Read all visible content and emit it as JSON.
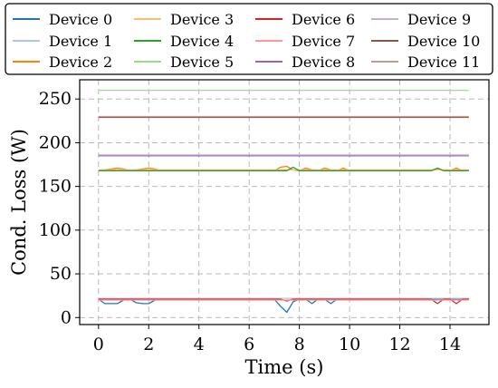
{
  "chart_data": {
    "type": "line",
    "title": "",
    "xlabel": "Time (s)",
    "ylabel": "Cond. Loss (W)",
    "xlim": [
      -0.75,
      15.55
    ],
    "ylim": [
      -8,
      272
    ],
    "xticks": [
      0,
      2,
      4,
      6,
      8,
      10,
      12,
      14
    ],
    "yticks": [
      0,
      50,
      100,
      150,
      200,
      250
    ],
    "grid": true,
    "grid_style": "dashed",
    "legend_position": "top (above plot, 4 columns)",
    "x": [
      0,
      0.25,
      0.5,
      0.75,
      1,
      1.25,
      1.5,
      1.75,
      2,
      2.25,
      2.5,
      2.75,
      3,
      3.25,
      3.5,
      3.75,
      4,
      4.25,
      4.5,
      4.75,
      5,
      5.25,
      5.5,
      5.75,
      6,
      6.25,
      6.5,
      6.75,
      7,
      7.25,
      7.5,
      7.75,
      8,
      8.25,
      8.5,
      8.75,
      9,
      9.25,
      9.5,
      9.75,
      10,
      10.25,
      10.5,
      10.75,
      11,
      11.25,
      11.5,
      11.75,
      12,
      12.25,
      12.5,
      12.75,
      13,
      13.25,
      13.5,
      13.75,
      14,
      14.25,
      14.5,
      14.75
    ],
    "series": [
      {
        "name": "Device 0",
        "color": "#1f77b4",
        "values": [
          21,
          16,
          16,
          16,
          20,
          21,
          17,
          16,
          16,
          20,
          21,
          21,
          21,
          21,
          21,
          21,
          21,
          21,
          21,
          21,
          21,
          21,
          21,
          21,
          21,
          21,
          21,
          21,
          21,
          13,
          6,
          18,
          21,
          21,
          16,
          21,
          21,
          16,
          21,
          21,
          21,
          21,
          21,
          21,
          21,
          21,
          21,
          21,
          21,
          21,
          21,
          21,
          21,
          21,
          21,
          21,
          21,
          21,
          21,
          21
        ]
      },
      {
        "name": "Device 1",
        "color": "#aec7e8",
        "values": [
          22,
          22,
          22,
          22,
          22,
          22,
          22,
          22,
          22,
          22,
          22,
          22,
          22,
          22,
          22,
          22,
          22,
          22,
          22,
          22,
          22,
          22,
          22,
          22,
          22,
          22,
          22,
          22,
          22,
          22,
          22,
          22,
          22,
          22,
          22,
          22,
          22,
          22,
          22,
          22,
          22,
          22,
          22,
          22,
          22,
          22,
          22,
          22,
          22,
          22,
          22,
          22,
          22,
          22,
          22,
          22,
          22,
          22,
          22,
          22
        ]
      },
      {
        "name": "Device 2",
        "color": "#ff7f0e",
        "values": [
          168,
          169,
          170,
          171,
          170,
          168,
          169,
          170,
          171,
          170,
          168,
          168,
          168,
          168,
          168,
          168,
          168,
          168,
          168,
          168,
          168,
          168,
          168,
          168,
          168,
          168,
          168,
          168,
          168,
          172,
          173,
          169,
          168,
          171,
          169,
          168,
          171,
          169,
          168,
          171,
          168,
          168,
          168,
          168,
          168,
          168,
          168,
          168,
          168,
          168,
          168,
          168,
          168,
          168,
          170,
          168,
          168,
          171,
          168,
          168
        ]
      },
      {
        "name": "Device 3",
        "color": "#ffbb78",
        "values": [
          169,
          169,
          169,
          169,
          169,
          169,
          169,
          169,
          169,
          169,
          169,
          169,
          169,
          169,
          169,
          169,
          169,
          169,
          169,
          169,
          169,
          169,
          169,
          169,
          169,
          169,
          169,
          169,
          169,
          169,
          169,
          169,
          169,
          169,
          169,
          169,
          169,
          169,
          169,
          169,
          169,
          169,
          169,
          169,
          169,
          169,
          169,
          169,
          169,
          169,
          169,
          169,
          169,
          169,
          169,
          169,
          169,
          169,
          169,
          169
        ]
      },
      {
        "name": "Device 4",
        "color": "#2ca02c",
        "values": [
          168,
          168,
          168,
          168,
          168,
          168,
          168,
          168,
          168,
          168,
          168,
          168,
          168,
          168,
          168,
          168,
          168,
          168,
          168,
          168,
          168,
          168,
          168,
          168,
          168,
          168,
          168,
          168,
          168,
          168,
          168,
          172,
          168,
          168,
          168,
          168,
          168,
          168,
          168,
          168,
          168,
          168,
          168,
          168,
          168,
          168,
          168,
          168,
          168,
          168,
          168,
          168,
          168,
          168,
          171,
          168,
          168,
          168,
          168,
          168
        ]
      },
      {
        "name": "Device 5",
        "color": "#98df8a",
        "values": [
          260,
          260,
          260,
          260,
          260,
          260,
          260,
          260,
          260,
          260,
          260,
          260,
          260,
          260,
          260,
          260,
          260,
          260,
          260,
          260,
          260,
          260,
          260,
          260,
          260,
          260,
          260,
          260,
          260,
          260,
          260,
          260,
          260,
          260,
          260,
          260,
          260,
          260,
          260,
          260,
          260,
          260,
          260,
          260,
          260,
          260,
          260,
          260,
          260,
          260,
          260,
          260,
          260,
          260,
          260,
          260,
          260,
          260,
          260,
          260
        ]
      },
      {
        "name": "Device 6",
        "color": "#d62728",
        "values": [
          21,
          21,
          21,
          21,
          21,
          21,
          21,
          21,
          21,
          21,
          21,
          21,
          21,
          21,
          21,
          21,
          21,
          21,
          21,
          21,
          21,
          21,
          21,
          21,
          21,
          21,
          21,
          21,
          21,
          21,
          19,
          21,
          21,
          21,
          21,
          21,
          21,
          21,
          21,
          21,
          21,
          21,
          21,
          21,
          21,
          21,
          21,
          21,
          21,
          21,
          21,
          21,
          21,
          21,
          16,
          21,
          21,
          16,
          21,
          21
        ]
      },
      {
        "name": "Device 7",
        "color": "#ff9896",
        "values": [
          20,
          20,
          20,
          20,
          20,
          20,
          20,
          20,
          20,
          20,
          20,
          20,
          20,
          20,
          20,
          20,
          20,
          20,
          20,
          20,
          20,
          20,
          20,
          20,
          20,
          20,
          20,
          20,
          20,
          20,
          20,
          20,
          20,
          20,
          20,
          20,
          20,
          20,
          20,
          20,
          20,
          20,
          20,
          20,
          20,
          20,
          20,
          20,
          20,
          20,
          20,
          20,
          20,
          20,
          20,
          20,
          20,
          20,
          20,
          20
        ]
      },
      {
        "name": "Device 8",
        "color": "#9467bd",
        "values": [
          185,
          185,
          185,
          185,
          185,
          185,
          185,
          185,
          185,
          185,
          185,
          185,
          185,
          185,
          185,
          185,
          185,
          185,
          185,
          185,
          185,
          185,
          185,
          185,
          185,
          185,
          185,
          185,
          185,
          185,
          185,
          185,
          185,
          185,
          185,
          185,
          185,
          185,
          185,
          185,
          185,
          185,
          185,
          185,
          185,
          185,
          185,
          185,
          185,
          185,
          185,
          185,
          185,
          185,
          185,
          185,
          185,
          185,
          185,
          185
        ]
      },
      {
        "name": "Device 9",
        "color": "#c5b0d5",
        "values": [
          186,
          186,
          186,
          186,
          186,
          186,
          186,
          186,
          186,
          186,
          186,
          186,
          186,
          186,
          186,
          186,
          186,
          186,
          186,
          186,
          186,
          186,
          186,
          186,
          186,
          186,
          186,
          186,
          186,
          186,
          186,
          186,
          186,
          186,
          186,
          186,
          186,
          186,
          186,
          186,
          186,
          186,
          186,
          186,
          186,
          186,
          186,
          186,
          186,
          186,
          186,
          186,
          186,
          186,
          186,
          186,
          186,
          186,
          186,
          186
        ]
      },
      {
        "name": "Device 10",
        "color": "#8c564b",
        "values": [
          229,
          229,
          229,
          229,
          229,
          229,
          229,
          229,
          229,
          229,
          229,
          229,
          229,
          229,
          229,
          229,
          229,
          229,
          229,
          229,
          229,
          229,
          229,
          229,
          229,
          229,
          229,
          229,
          229,
          229,
          229,
          229,
          229,
          229,
          229,
          229,
          229,
          229,
          229,
          229,
          229,
          229,
          229,
          229,
          229,
          229,
          229,
          229,
          229,
          229,
          229,
          229,
          229,
          229,
          229,
          229,
          229,
          229,
          229,
          229
        ]
      },
      {
        "name": "Device 11",
        "color": "#c49c94",
        "values": [
          230,
          230,
          230,
          230,
          230,
          230,
          230,
          230,
          230,
          230,
          230,
          230,
          230,
          230,
          230,
          230,
          230,
          230,
          230,
          230,
          230,
          230,
          230,
          230,
          230,
          230,
          230,
          230,
          230,
          230,
          230,
          230,
          230,
          230,
          230,
          230,
          230,
          230,
          230,
          230,
          230,
          230,
          230,
          230,
          230,
          230,
          230,
          230,
          230,
          230,
          230,
          230,
          230,
          230,
          230,
          230,
          230,
          230,
          230,
          230
        ]
      }
    ]
  }
}
